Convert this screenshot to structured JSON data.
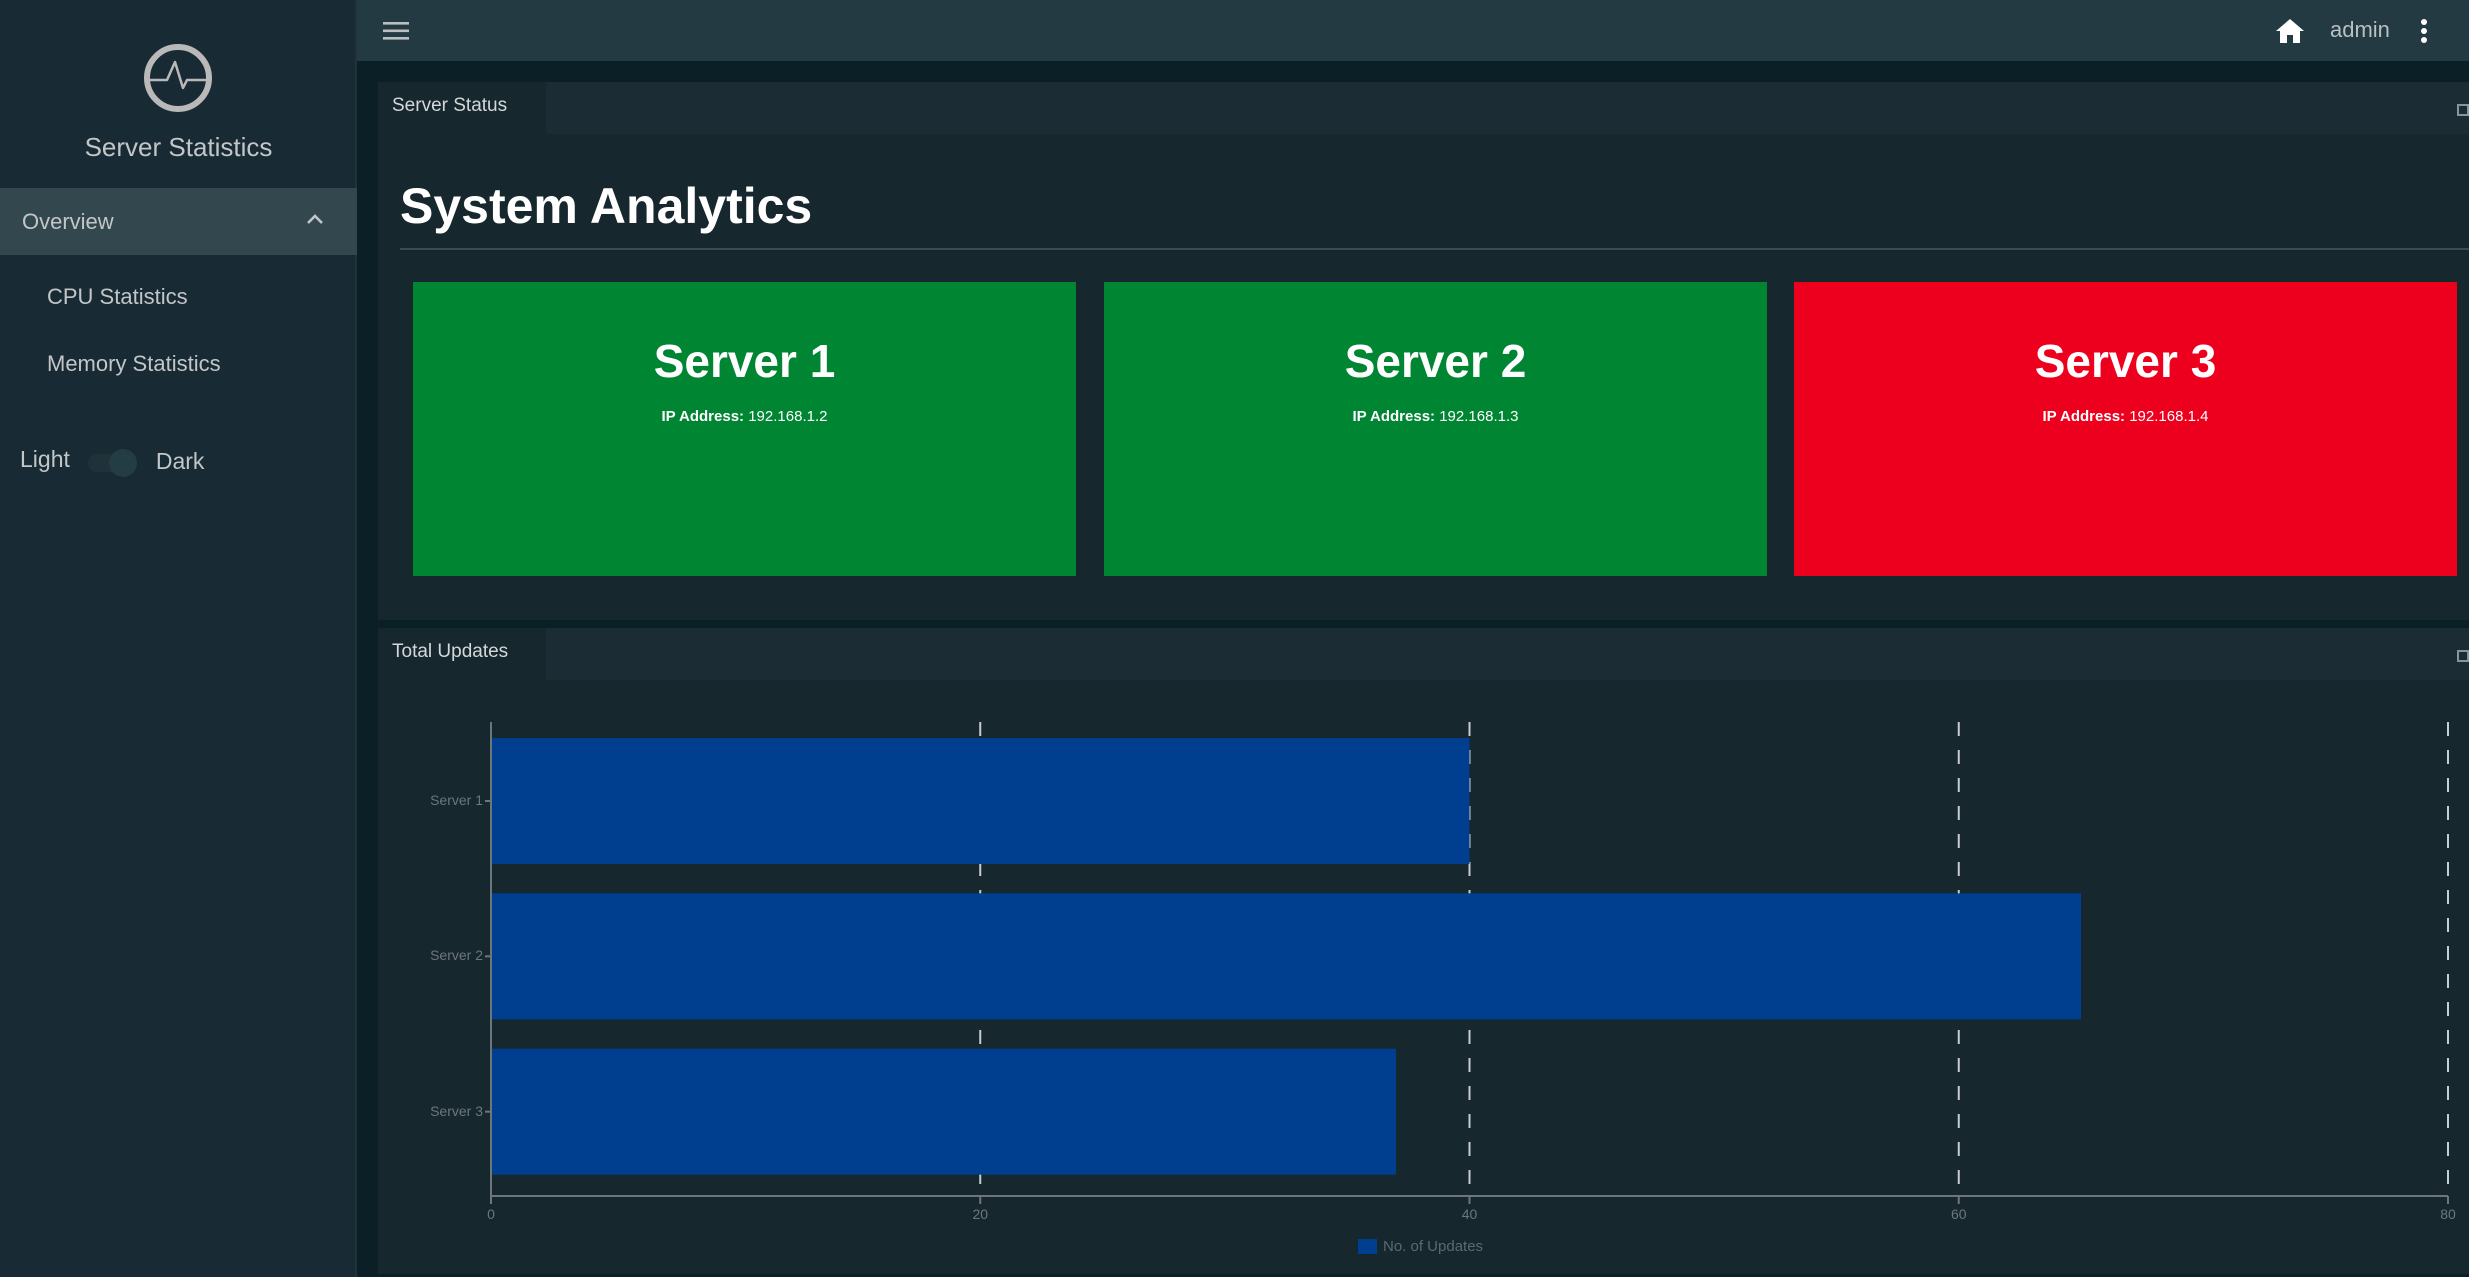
{
  "sidebar": {
    "logo_icon": "pulse-circle-icon",
    "app_title": "Server Statistics",
    "nav": {
      "overview_label": "Overview",
      "overview_expanded": true,
      "items": [
        {
          "label": "CPU Statistics"
        },
        {
          "label": "Memory Statistics"
        }
      ]
    },
    "theme": {
      "light_label": "Light",
      "dark_label": "Dark",
      "selected": "Dark"
    }
  },
  "header": {
    "menu_icon": "hamburger-icon",
    "home_icon": "home-icon",
    "user": "admin",
    "more_icon": "kebab-icon"
  },
  "status_panel": {
    "tab_label": "Server Status",
    "title": "System Analytics",
    "ip_label": "IP Address:",
    "servers": [
      {
        "name": "Server 1",
        "ip": "192.168.1.2",
        "status": "online",
        "color": "#008533"
      },
      {
        "name": "Server 2",
        "ip": "192.168.1.3",
        "status": "online",
        "color": "#008533"
      },
      {
        "name": "Server 3",
        "ip": "192.168.1.4",
        "status": "offline",
        "color": "#ec001d"
      }
    ]
  },
  "updates_panel": {
    "tab_label": "Total Updates"
  },
  "chart_data": {
    "type": "bar",
    "orientation": "horizontal",
    "title": "Total Updates",
    "categories": [
      "Server 1",
      "Server 2",
      "Server 3"
    ],
    "series": [
      {
        "name": "No. of Updates",
        "values": [
          40,
          65,
          37
        ],
        "color": "#003f8f"
      }
    ],
    "xlabel": "",
    "ylabel": "",
    "xlim": [
      0,
      80
    ],
    "xticks": [
      0,
      20,
      40,
      60,
      80
    ],
    "grid": "vertical dashed",
    "legend_position": "bottom"
  },
  "colors": {
    "sidebar_bg": "#182a33",
    "header_bg": "#233a43",
    "panel_bg": "#16272e",
    "bar": "#003f8f",
    "online": "#008533",
    "offline": "#ec001d"
  }
}
